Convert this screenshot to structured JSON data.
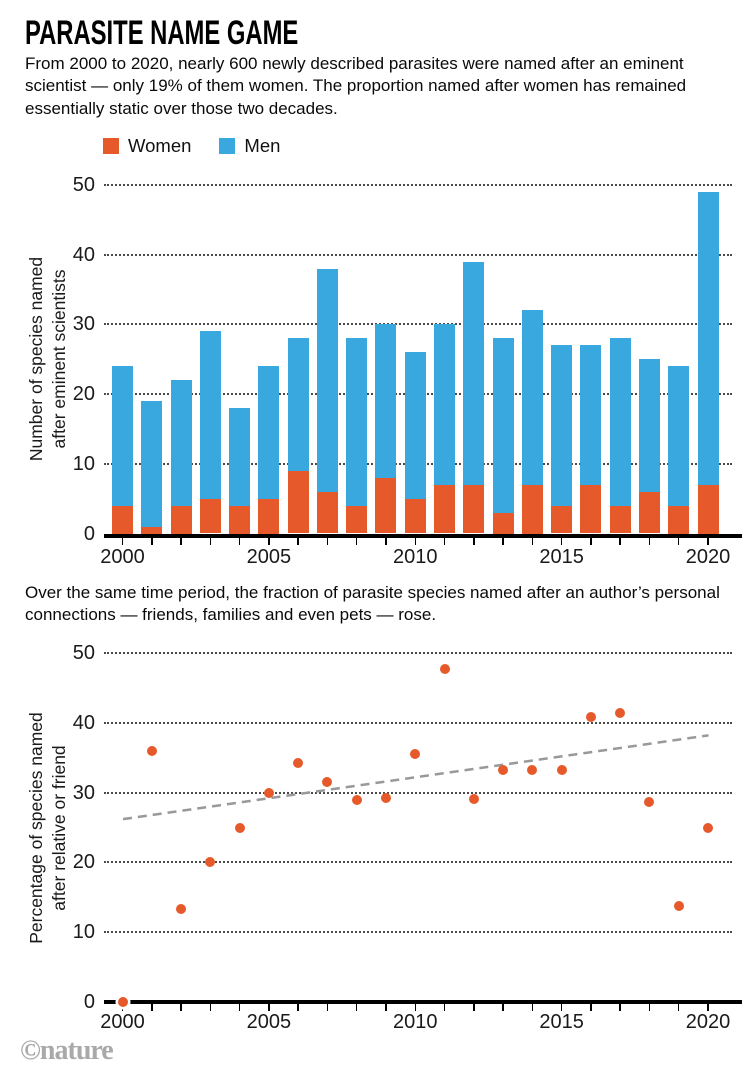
{
  "header": {
    "title": "PARASITE NAME GAME",
    "intro": "From 2000 to 2020, nearly 600 newly described parasites were named after an eminent scientist — only 19% of them women. The proportion named after women has remained essentially static over those two decades."
  },
  "legend": {
    "women_label": "Women",
    "men_label": "Men"
  },
  "colors": {
    "women": "#E6592A",
    "men": "#38A8DF",
    "trend": "#97999C",
    "axis": "#000000",
    "grid_dots": "#4a4a4a",
    "credit_gray": "#a9a9a9"
  },
  "scatter_section": {
    "intro": "Over the same time period, the fraction of parasite species named after an author’s personal connections — friends, families and even pets — rose."
  },
  "footer": {
    "credit": "©nature"
  },
  "chart_data": [
    {
      "type": "bar",
      "stacked": true,
      "ylabel": "Number of species named\nafter eminent scientists",
      "categories": [
        2000,
        2001,
        2002,
        2003,
        2004,
        2005,
        2006,
        2007,
        2008,
        2009,
        2010,
        2011,
        2012,
        2013,
        2014,
        2015,
        2016,
        2017,
        2018,
        2019,
        2020
      ],
      "series": [
        {
          "name": "Women",
          "color": "#E6592A",
          "values": [
            4,
            1,
            4,
            5,
            4,
            5,
            9,
            6,
            4,
            8,
            5,
            7,
            7,
            3,
            7,
            4,
            7,
            4,
            6,
            4,
            7
          ]
        },
        {
          "name": "Men",
          "color": "#38A8DF",
          "values": [
            20,
            18,
            18,
            24,
            14,
            19,
            19,
            32,
            24,
            22,
            21,
            23,
            32,
            25,
            25,
            23,
            20,
            24,
            19,
            20,
            42
          ]
        }
      ],
      "totals": [
        24,
        19,
        22,
        29,
        18,
        24,
        28,
        38,
        28,
        30,
        26,
        30,
        39,
        28,
        32,
        27,
        27,
        28,
        25,
        24,
        49
      ],
      "ylim": [
        0,
        50
      ],
      "yticks": [
        0,
        10,
        20,
        30,
        40,
        50
      ],
      "xticks": [
        2000,
        2005,
        2010,
        2015,
        2020
      ],
      "grid": "dotted-horizontal",
      "legend_position": "top-left"
    },
    {
      "type": "scatter",
      "ylabel": "Percentage of species named\nafter relative or friend",
      "x": [
        2000,
        2001,
        2002,
        2003,
        2004,
        2005,
        2006,
        2007,
        2008,
        2009,
        2010,
        2011,
        2012,
        2013,
        2014,
        2015,
        2016,
        2017,
        2018,
        2019,
        2020
      ],
      "y": [
        0,
        36,
        13.3,
        20,
        25,
        30,
        34.2,
        31.5,
        29,
        29.2,
        35.6,
        47.7,
        29.1,
        33.3,
        33.3,
        33.3,
        40.9,
        41.4,
        28.6,
        13.8,
        25
      ],
      "trend": {
        "style": "dashed",
        "x": [
          2000,
          2020
        ],
        "y": [
          26.2,
          38.2
        ]
      },
      "ylim": [
        0,
        50
      ],
      "yticks": [
        0,
        10,
        20,
        30,
        40,
        50
      ],
      "xticks": [
        2000,
        2005,
        2010,
        2015,
        2020
      ],
      "grid": "dotted-horizontal"
    }
  ]
}
